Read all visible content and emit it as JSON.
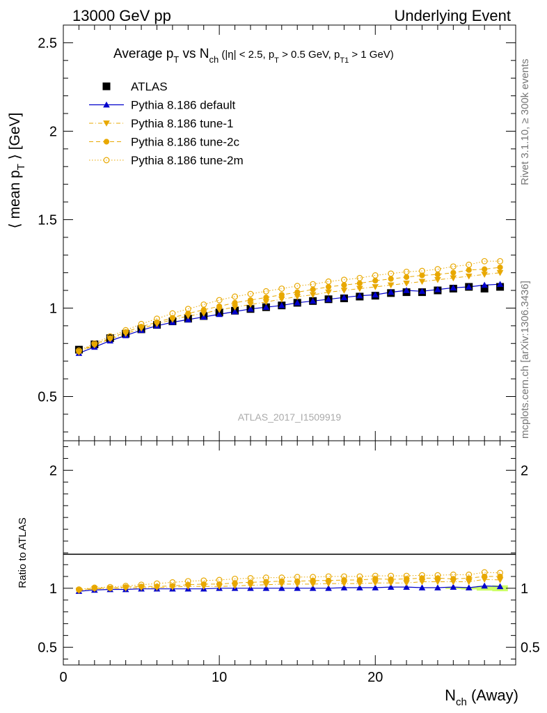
{
  "header": {
    "left": "13000 GeV pp",
    "right": "Underlying Event"
  },
  "side_labels": {
    "rivet": "Rivet 3.1.10, ≥ 300k events",
    "mcplots": "mcplots.cern.ch [arXiv:1306.3436]"
  },
  "watermark": "ATLAS_2017_I1509919",
  "chart_data": [
    {
      "type": "line",
      "title": "Average p_T vs N_ch (|η| < 2.5, p_T > 0.5 GeV, p_T1 > 1 GeV)",
      "title_parts": {
        "lead": "Average p",
        "sub1": "T",
        "vs": " vs N",
        "sub2": "ch",
        "cuts_a": " (|η| < 2.5, p",
        "sub3": "T",
        "cuts_b": " > 0.5 GeV, p",
        "sub4": "T1",
        "cuts_c": " > 1 GeV)"
      },
      "ylabel": "⟨ mean p_T ⟩ [GeV]",
      "ylabel_parts": {
        "lead": "⟨ mean p",
        "sub": "T",
        "tail": " ⟩ [GeV]"
      },
      "xlim": [
        0,
        29
      ],
      "ylim": [
        0.25,
        2.6
      ],
      "yticks": [
        "0.5",
        "1",
        "1.5",
        "2",
        "2.5"
      ],
      "x": [
        1,
        2,
        3,
        4,
        5,
        6,
        7,
        8,
        9,
        10,
        11,
        12,
        13,
        14,
        15,
        16,
        17,
        18,
        19,
        20,
        21,
        22,
        23,
        24,
        25,
        26,
        27,
        28
      ],
      "legend_position": "top-left",
      "series": [
        {
          "name": "ATLAS",
          "color": "#000000",
          "marker": "square",
          "values": [
            0.765,
            0.795,
            0.83,
            0.855,
            0.88,
            0.905,
            0.925,
            0.94,
            0.955,
            0.975,
            0.985,
            0.995,
            1.005,
            1.015,
            1.03,
            1.04,
            1.05,
            1.055,
            1.065,
            1.07,
            1.085,
            1.09,
            1.09,
            1.1,
            1.11,
            1.12,
            1.11,
            1.12
          ]
        },
        {
          "name": "Pythia 8.186 default",
          "color": "#0000cc",
          "marker": "triangle-up",
          "line": "solid",
          "values": [
            0.745,
            0.78,
            0.815,
            0.845,
            0.875,
            0.9,
            0.92,
            0.935,
            0.95,
            0.965,
            0.98,
            0.995,
            1.005,
            1.015,
            1.03,
            1.04,
            1.05,
            1.06,
            1.07,
            1.075,
            1.09,
            1.1,
            1.095,
            1.105,
            1.115,
            1.12,
            1.13,
            1.135
          ]
        },
        {
          "name": "Pythia 8.186 tune-1",
          "color": "#e8a800",
          "marker": "triangle-down",
          "line": "dashdot",
          "values": [
            0.75,
            0.79,
            0.825,
            0.855,
            0.885,
            0.91,
            0.935,
            0.955,
            0.97,
            0.99,
            1.005,
            1.02,
            1.035,
            1.05,
            1.065,
            1.075,
            1.09,
            1.1,
            1.11,
            1.12,
            1.13,
            1.14,
            1.15,
            1.16,
            1.17,
            1.18,
            1.19,
            1.2
          ]
        },
        {
          "name": "Pythia 8.186 tune-2c",
          "color": "#e8a800",
          "marker": "circle",
          "line": "dashed",
          "values": [
            0.755,
            0.795,
            0.83,
            0.865,
            0.895,
            0.92,
            0.945,
            0.97,
            0.99,
            1.01,
            1.03,
            1.045,
            1.06,
            1.075,
            1.09,
            1.105,
            1.12,
            1.13,
            1.14,
            1.155,
            1.165,
            1.175,
            1.185,
            1.19,
            1.2,
            1.215,
            1.22,
            1.23
          ]
        },
        {
          "name": "Pythia 8.186 tune-2m",
          "color": "#e8a800",
          "marker": "open-circle",
          "line": "dotted",
          "values": [
            0.76,
            0.8,
            0.84,
            0.875,
            0.91,
            0.94,
            0.97,
            0.995,
            1.02,
            1.045,
            1.065,
            1.08,
            1.095,
            1.11,
            1.125,
            1.135,
            1.15,
            1.16,
            1.17,
            1.185,
            1.195,
            1.205,
            1.21,
            1.22,
            1.235,
            1.245,
            1.265,
            1.265
          ]
        }
      ]
    },
    {
      "type": "line",
      "ylabel": "Ratio to ATLAS",
      "xlabel": "N_ch (Away)",
      "xlabel_parts": {
        "lead": "N",
        "sub": "ch",
        "tail": " (Away)"
      },
      "xlim": [
        0,
        29
      ],
      "ylim": [
        0.35,
        2.25
      ],
      "yticks": [
        "0.5",
        "1",
        "2"
      ],
      "xticks": [
        "0",
        "10",
        "20"
      ],
      "band": {
        "color": "#ccff66",
        "x": [
          25,
          26,
          27,
          28
        ],
        "half_width": [
          0.005,
          0.01,
          0.02,
          0.025
        ]
      },
      "x": [
        1,
        2,
        3,
        4,
        5,
        6,
        7,
        8,
        9,
        10,
        11,
        12,
        13,
        14,
        15,
        16,
        17,
        18,
        19,
        20,
        21,
        22,
        23,
        24,
        25,
        26,
        27,
        28
      ],
      "series": [
        {
          "name": "Pythia 8.186 default",
          "color": "#0000cc",
          "marker": "triangle-up",
          "line": "solid",
          "values": [
            0.975,
            0.985,
            0.99,
            0.99,
            0.995,
            0.995,
            0.995,
            0.995,
            0.995,
            1.0,
            1.0,
            1.0,
            1.0,
            1.0,
            1.0,
            1.0,
            1.0,
            1.005,
            1.005,
            1.005,
            1.01,
            1.01,
            1.005,
            1.005,
            1.01,
            1.005,
            1.02,
            1.015
          ]
        },
        {
          "name": "Pythia 8.186 tune-1",
          "color": "#e8a800",
          "marker": "triangle-down",
          "line": "dashdot",
          "values": [
            0.98,
            0.995,
            1.0,
            1.0,
            1.005,
            1.005,
            1.01,
            1.015,
            1.015,
            1.015,
            1.02,
            1.025,
            1.03,
            1.035,
            1.035,
            1.035,
            1.04,
            1.04,
            1.04,
            1.045,
            1.045,
            1.045,
            1.055,
            1.055,
            1.055,
            1.055,
            1.075,
            1.07
          ]
        },
        {
          "name": "Pythia 8.186 tune-2c",
          "color": "#e8a800",
          "marker": "circle",
          "line": "dashed",
          "values": [
            0.985,
            1.0,
            1.0,
            1.01,
            1.015,
            1.015,
            1.02,
            1.03,
            1.035,
            1.035,
            1.045,
            1.05,
            1.055,
            1.06,
            1.06,
            1.065,
            1.065,
            1.07,
            1.07,
            1.08,
            1.075,
            1.08,
            1.085,
            1.085,
            1.08,
            1.085,
            1.1,
            1.1
          ]
        },
        {
          "name": "Pythia 8.186 tune-2m",
          "color": "#e8a800",
          "marker": "open-circle",
          "line": "dotted",
          "values": [
            0.99,
            1.005,
            1.01,
            1.02,
            1.03,
            1.04,
            1.05,
            1.06,
            1.065,
            1.07,
            1.08,
            1.085,
            1.09,
            1.09,
            1.095,
            1.095,
            1.1,
            1.1,
            1.1,
            1.105,
            1.105,
            1.105,
            1.11,
            1.11,
            1.115,
            1.115,
            1.135,
            1.13
          ]
        }
      ]
    }
  ]
}
